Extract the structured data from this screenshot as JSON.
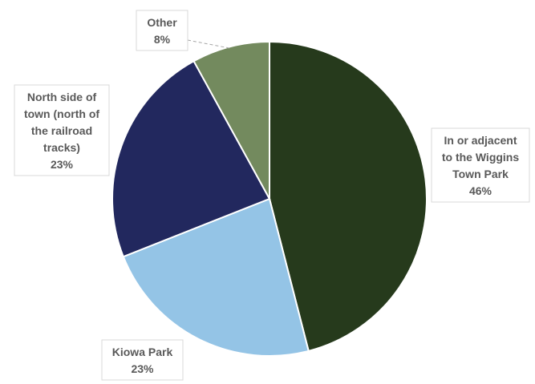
{
  "chart_data": {
    "type": "pie",
    "slices": [
      {
        "label": [
          "In or adjacent",
          "to the Wiggins",
          "Town Park"
        ],
        "value": 46,
        "value_label": "46%",
        "color": "#263a1c"
      },
      {
        "label": [
          "Kiowa Park"
        ],
        "value": 23,
        "value_label": "23%",
        "color": "#94c4e6"
      },
      {
        "label": [
          "North side of",
          "town (north of",
          "the railroad",
          "tracks)"
        ],
        "value": 23,
        "value_label": "23%",
        "color": "#22285e"
      },
      {
        "label": [
          "Other"
        ],
        "value": 8,
        "value_label": "8%",
        "color": "#738a5e"
      }
    ]
  }
}
